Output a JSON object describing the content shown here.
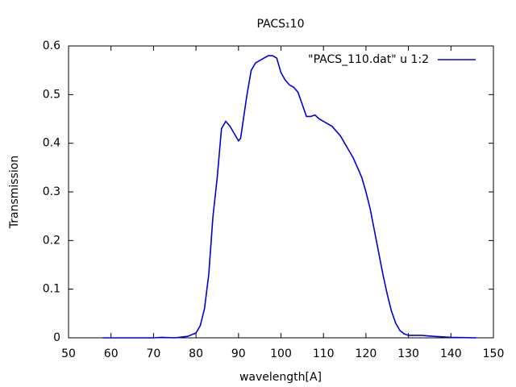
{
  "chart_data": {
    "type": "line",
    "title": "PACS₁10",
    "xlabel": "wavelength[A]",
    "ylabel": "Transmission",
    "x": [
      58,
      60,
      65,
      70,
      72,
      75,
      78,
      80,
      81,
      82,
      83,
      84,
      85,
      86,
      87,
      88,
      89,
      90,
      90.5,
      91,
      92,
      93,
      94,
      95,
      96,
      97,
      98,
      99,
      100,
      101,
      102,
      103,
      104,
      105,
      106,
      107,
      108,
      109,
      110,
      111,
      112,
      113,
      114,
      115,
      116,
      117,
      118,
      119,
      120,
      121,
      122,
      123,
      124,
      125,
      126,
      127,
      128,
      129,
      130,
      133,
      136,
      140,
      146
    ],
    "series": [
      {
        "name": "\"PACS_110.dat\" u 1:2",
        "color": "#0000dd",
        "values": [
          0,
          0,
          0,
          0,
          0.001,
          0,
          0.003,
          0.01,
          0.025,
          0.06,
          0.13,
          0.25,
          0.33,
          0.43,
          0.445,
          0.435,
          0.42,
          0.405,
          0.41,
          0.44,
          0.5,
          0.55,
          0.565,
          0.57,
          0.575,
          0.58,
          0.58,
          0.575,
          0.545,
          0.53,
          0.52,
          0.515,
          0.505,
          0.48,
          0.455,
          0.455,
          0.458,
          0.45,
          0.445,
          0.44,
          0.435,
          0.425,
          0.415,
          0.4,
          0.385,
          0.37,
          0.35,
          0.33,
          0.3,
          0.265,
          0.22,
          0.175,
          0.13,
          0.09,
          0.055,
          0.03,
          0.015,
          0.008,
          0.005,
          0.005,
          0.003,
          0.001,
          0
        ]
      }
    ],
    "xlim": [
      50,
      150
    ],
    "xticks": [
      50,
      60,
      70,
      80,
      90,
      100,
      110,
      120,
      130,
      140,
      150
    ],
    "ylim": [
      0,
      0.6
    ],
    "yticks": [
      0,
      0.1,
      0.2,
      0.3,
      0.4,
      0.5,
      0.6
    ],
    "grid": false,
    "legend": "top-right"
  }
}
